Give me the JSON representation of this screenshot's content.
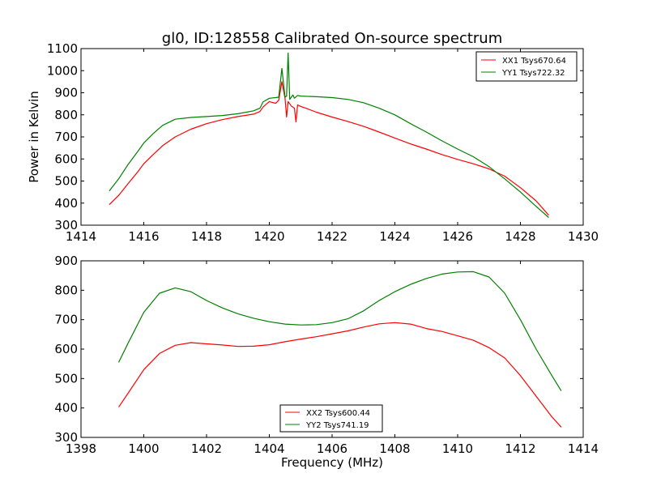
{
  "chart_data": [
    {
      "type": "line",
      "title": "gl0, ID:128558 Calibrated On-source spectrum",
      "xlabel": "",
      "ylabel": "Power in Kelvin",
      "xlim": [
        1414,
        1430
      ],
      "ylim": [
        300,
        1100
      ],
      "xticks": [
        1414,
        1416,
        1418,
        1420,
        1422,
        1424,
        1426,
        1428,
        1430
      ],
      "yticks": [
        300,
        400,
        500,
        600,
        700,
        800,
        900,
        1000,
        1100
      ],
      "grid": false,
      "legend_position": "upper right",
      "series": [
        {
          "name": "XX1 Tsys670.64",
          "color": "#ff0000",
          "x": [
            1414.9,
            1415.2,
            1415.5,
            1415.8,
            1416.0,
            1416.3,
            1416.6,
            1417.0,
            1417.5,
            1418.0,
            1418.5,
            1419.0,
            1419.5,
            1419.7,
            1419.8,
            1419.9,
            1420.0,
            1420.2,
            1420.3,
            1420.4,
            1420.5,
            1420.55,
            1420.6,
            1420.7,
            1420.8,
            1420.85,
            1420.9,
            1421.0,
            1421.2,
            1421.5,
            1422.0,
            1422.5,
            1423.0,
            1423.5,
            1424.0,
            1424.5,
            1425.0,
            1425.5,
            1426.0,
            1426.5,
            1427.0,
            1427.5,
            1428.0,
            1428.5,
            1428.9
          ],
          "y": [
            393,
            435,
            488,
            540,
            578,
            620,
            660,
            700,
            735,
            760,
            778,
            792,
            803,
            815,
            835,
            848,
            860,
            852,
            866,
            950,
            875,
            790,
            860,
            840,
            830,
            768,
            845,
            838,
            828,
            812,
            790,
            770,
            748,
            722,
            695,
            668,
            645,
            620,
            598,
            578,
            555,
            522,
            470,
            410,
            345
          ]
        },
        {
          "name": "YY1 Tsys722.32",
          "color": "#008000",
          "x": [
            1414.9,
            1415.2,
            1415.5,
            1415.8,
            1416.0,
            1416.3,
            1416.6,
            1417.0,
            1417.5,
            1418.0,
            1418.5,
            1419.0,
            1419.5,
            1419.7,
            1419.8,
            1420.0,
            1420.2,
            1420.3,
            1420.4,
            1420.5,
            1420.55,
            1420.6,
            1420.65,
            1420.7,
            1420.75,
            1420.8,
            1420.9,
            1421.0,
            1421.5,
            1422.0,
            1422.5,
            1423.0,
            1423.5,
            1424.0,
            1424.5,
            1425.0,
            1425.5,
            1426.0,
            1426.5,
            1427.0,
            1427.5,
            1428.0,
            1428.5,
            1428.9
          ],
          "y": [
            455,
            510,
            575,
            632,
            672,
            715,
            752,
            780,
            788,
            792,
            797,
            805,
            818,
            830,
            858,
            875,
            878,
            880,
            1010,
            880,
            885,
            1080,
            870,
            880,
            890,
            875,
            888,
            885,
            882,
            878,
            870,
            855,
            830,
            800,
            760,
            722,
            682,
            645,
            610,
            565,
            510,
            450,
            385,
            335
          ]
        }
      ]
    },
    {
      "type": "line",
      "title": "",
      "xlabel": "Frequency (MHz)",
      "ylabel": "",
      "xlim": [
        1398,
        1414
      ],
      "ylim": [
        300,
        900
      ],
      "xticks": [
        1398,
        1400,
        1402,
        1404,
        1406,
        1408,
        1410,
        1412,
        1414
      ],
      "yticks": [
        300,
        400,
        500,
        600,
        700,
        800,
        900
      ],
      "grid": false,
      "legend_position": "lower center",
      "series": [
        {
          "name": "XX2 Tsys600.44",
          "color": "#ff0000",
          "x": [
            1399.2,
            1399.5,
            1400.0,
            1400.5,
            1401.0,
            1401.5,
            1402.0,
            1402.5,
            1403.0,
            1403.5,
            1404.0,
            1404.5,
            1405.0,
            1405.5,
            1406.0,
            1406.5,
            1407.0,
            1407.5,
            1408.0,
            1408.5,
            1409.0,
            1409.5,
            1410.0,
            1410.5,
            1411.0,
            1411.5,
            1412.0,
            1412.5,
            1413.0,
            1413.3
          ],
          "y": [
            403,
            450,
            530,
            585,
            613,
            622,
            618,
            614,
            609,
            610,
            615,
            625,
            634,
            642,
            652,
            662,
            675,
            686,
            690,
            685,
            670,
            660,
            645,
            630,
            605,
            570,
            510,
            440,
            370,
            335
          ]
        },
        {
          "name": "YY2 Tsys741.19",
          "color": "#008000",
          "x": [
            1399.2,
            1399.5,
            1400.0,
            1400.5,
            1401.0,
            1401.5,
            1402.0,
            1402.5,
            1403.0,
            1403.5,
            1404.0,
            1404.5,
            1405.0,
            1405.5,
            1406.0,
            1406.5,
            1407.0,
            1407.5,
            1408.0,
            1408.5,
            1409.0,
            1409.5,
            1410.0,
            1410.5,
            1411.0,
            1411.5,
            1412.0,
            1412.5,
            1413.0,
            1413.3
          ],
          "y": [
            555,
            620,
            725,
            790,
            808,
            795,
            765,
            740,
            720,
            705,
            693,
            685,
            682,
            683,
            690,
            703,
            730,
            765,
            795,
            820,
            840,
            855,
            862,
            863,
            845,
            790,
            700,
            600,
            510,
            458
          ]
        }
      ]
    }
  ]
}
